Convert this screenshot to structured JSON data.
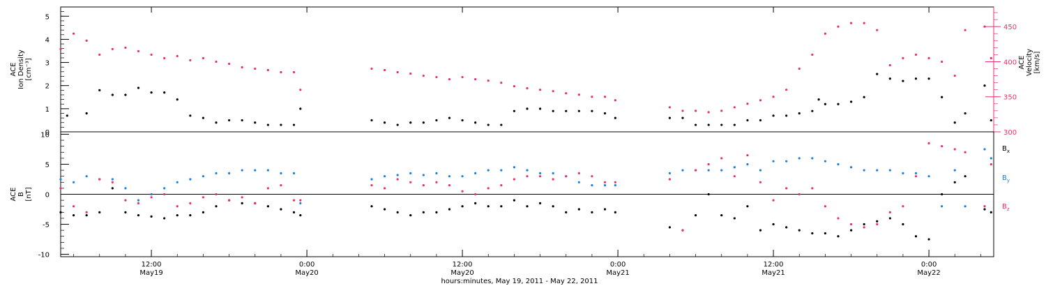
{
  "chart_data": [
    {
      "type": "scatter",
      "panel": "top",
      "ylabel_lines": [
        "ACE",
        "Ion Density",
        "[cm⁻³]"
      ],
      "ylim": [
        0,
        5.4
      ],
      "yticks": [
        0,
        1,
        2,
        3,
        4,
        5
      ],
      "y2label_lines": [
        "ACE",
        "Velocity",
        "[km/s]"
      ],
      "y2lim": [
        300,
        478
      ],
      "y2ticks": [
        300,
        350,
        400,
        450
      ],
      "x_range_hours": [
        5,
        77
      ],
      "series": [
        {
          "name": "",
          "axis": "left",
          "color": "#000000",
          "x": [
            5.5,
            7,
            8,
            9,
            10,
            11,
            12,
            13,
            14,
            15,
            16,
            17,
            18,
            19,
            20,
            21,
            22,
            23,
            23.5,
            29,
            30,
            31,
            32,
            33,
            34,
            35,
            36,
            37,
            38,
            39,
            40,
            41,
            42,
            43,
            44,
            45,
            46,
            47,
            47.8,
            52,
            53,
            54,
            55,
            56,
            57,
            58,
            59,
            60,
            61,
            62,
            63,
            63.5,
            64,
            65,
            66,
            67,
            68,
            69,
            70,
            71,
            72,
            73,
            74,
            74.8,
            76.3,
            76.8
          ],
          "y": [
            0.7,
            0.8,
            1.8,
            1.6,
            1.6,
            1.9,
            1.7,
            1.7,
            1.4,
            0.7,
            0.6,
            0.4,
            0.5,
            0.5,
            0.4,
            0.3,
            0.3,
            0.3,
            1.0,
            0.5,
            0.4,
            0.3,
            0.4,
            0.4,
            0.5,
            0.6,
            0.5,
            0.4,
            0.3,
            0.3,
            0.9,
            1.0,
            1.0,
            0.9,
            0.9,
            0.9,
            0.9,
            0.8,
            0.6,
            0.6,
            0.6,
            0.3,
            0.3,
            0.3,
            0.3,
            0.5,
            0.5,
            0.7,
            0.7,
            0.8,
            0.9,
            1.4,
            1.2,
            1.2,
            1.3,
            1.5,
            2.5,
            2.3,
            2.2,
            2.3,
            2.3,
            1.5,
            0.4,
            0.8,
            2.0,
            0.5
          ]
        },
        {
          "name": "",
          "axis": "right",
          "color": "#e8316b",
          "x": [
            5,
            6,
            7,
            8,
            9,
            10,
            11,
            12,
            13,
            14,
            15,
            16,
            17,
            18,
            19,
            20,
            21,
            22,
            23,
            23.5,
            29,
            30,
            31,
            32,
            33,
            34,
            35,
            36,
            37,
            38,
            39,
            40,
            41,
            42,
            43,
            44,
            45,
            46,
            47,
            47.8,
            52,
            53,
            54,
            55,
            56,
            57,
            58,
            59,
            60,
            61,
            62,
            63,
            64,
            65,
            66,
            67,
            68,
            69,
            70,
            71,
            72,
            73,
            74,
            74.8,
            76.3,
            76.8
          ],
          "y": [
            418,
            440,
            430,
            410,
            418,
            420,
            415,
            410,
            405,
            408,
            402,
            405,
            400,
            397,
            392,
            390,
            388,
            385,
            385,
            360,
            390,
            388,
            385,
            383,
            380,
            378,
            375,
            378,
            375,
            373,
            370,
            365,
            362,
            360,
            358,
            355,
            353,
            350,
            350,
            345,
            335,
            330,
            330,
            328,
            330,
            335,
            340,
            345,
            350,
            360,
            390,
            410,
            440,
            450,
            455,
            455,
            445,
            395,
            405,
            410,
            405,
            400,
            380,
            445,
            450,
            405
          ]
        }
      ]
    },
    {
      "type": "scatter",
      "panel": "bottom",
      "ylabel_lines": [
        "ACE",
        "B",
        "[nT]"
      ],
      "ylim": [
        -10.4,
        10.4
      ],
      "yticks": [
        -10,
        -5,
        0,
        5,
        10
      ],
      "zero_line": true,
      "x_range_hours": [
        5,
        77
      ],
      "series": [
        {
          "name": "Bx",
          "color": "#000000",
          "x": [
            5,
            6,
            7,
            8,
            9,
            10,
            11,
            12,
            13,
            14,
            15,
            16,
            17,
            18,
            19,
            20,
            21,
            22,
            23,
            23.5,
            29,
            30,
            31,
            32,
            33,
            34,
            35,
            36,
            37,
            38,
            39,
            40,
            41,
            42,
            43,
            44,
            45,
            46,
            47,
            47.8,
            52,
            53,
            54,
            55,
            56,
            57,
            58,
            59,
            60,
            61,
            62,
            63,
            64,
            65,
            66,
            67,
            68,
            69,
            70,
            71,
            72,
            73,
            74,
            74.8,
            76.3,
            76.8
          ],
          "y": [
            -3,
            -3.5,
            -3.5,
            -3,
            1,
            -3,
            -3.5,
            -3.7,
            -4,
            -3.5,
            -3.5,
            -3,
            -2,
            -1,
            -1.5,
            -1.5,
            -2,
            -2.5,
            -3,
            -3.5,
            -2,
            -2.5,
            -3,
            -3.5,
            -3,
            -3,
            -2.5,
            -2,
            -1.5,
            -2,
            -2,
            -1,
            -2,
            -1.5,
            -2,
            -3,
            -2.5,
            -3,
            -2.5,
            -3,
            -5.5,
            -6,
            -3.5,
            0,
            -3.5,
            -4,
            -2,
            -6,
            -5,
            -5.5,
            -6,
            -6.5,
            -6.5,
            -7,
            -6,
            -5,
            -4.5,
            -4,
            -5,
            -7,
            -7.5,
            0,
            2,
            3,
            -2.5,
            -3
          ]
        },
        {
          "name": "By",
          "color": "#1a7fe0",
          "x": [
            5,
            6,
            7,
            8,
            9,
            10,
            11,
            12,
            13,
            14,
            15,
            16,
            17,
            18,
            19,
            20,
            21,
            22,
            23,
            23.5,
            29,
            30,
            31,
            32,
            33,
            34,
            35,
            36,
            37,
            38,
            39,
            40,
            41,
            42,
            43,
            44,
            45,
            46,
            47,
            47.8,
            52,
            53,
            54,
            55,
            56,
            57,
            58,
            59,
            60,
            61,
            62,
            63,
            64,
            65,
            66,
            67,
            68,
            69,
            70,
            71,
            72,
            73,
            74,
            74.8,
            76.3,
            76.8
          ],
          "y": [
            2.5,
            2,
            3,
            2.5,
            2.5,
            1,
            -1,
            0,
            1,
            2,
            2.5,
            3,
            3.5,
            3.5,
            4,
            4,
            4,
            3.5,
            3.5,
            -1.5,
            2.5,
            3,
            3.2,
            3.5,
            3.2,
            3.5,
            3,
            3,
            3.5,
            4,
            4,
            4.5,
            4,
            3.5,
            3.5,
            3,
            2,
            1.5,
            1.5,
            1.5,
            3.5,
            4,
            4,
            4,
            4,
            4.5,
            5,
            4,
            5.5,
            5.5,
            6,
            6,
            5.5,
            5,
            4.5,
            4,
            4,
            4,
            3.5,
            3.5,
            3,
            -2,
            4,
            -2,
            7.5,
            6
          ]
        },
        {
          "name": "Bz",
          "color": "#e8316b",
          "x": [
            5,
            6,
            7,
            8,
            9,
            10,
            11,
            12,
            13,
            14,
            15,
            16,
            17,
            18,
            19,
            20,
            21,
            22,
            23,
            23.5,
            29,
            30,
            31,
            32,
            33,
            34,
            35,
            36,
            37,
            38,
            39,
            40,
            41,
            42,
            43,
            44,
            45,
            46,
            47,
            47.8,
            52,
            53,
            54,
            55,
            56,
            57,
            58,
            59,
            60,
            61,
            62,
            63,
            64,
            65,
            66,
            67,
            68,
            69,
            70,
            71,
            72,
            73,
            74,
            74.8,
            76.3,
            76.8
          ],
          "y": [
            1,
            -2,
            -3,
            2.5,
            2,
            -1,
            -1.5,
            -0.5,
            0,
            -2,
            -1.5,
            -0.5,
            0,
            -1,
            -0.5,
            -1.5,
            1,
            1.5,
            -1,
            -1,
            1.5,
            1,
            2.5,
            2,
            1.5,
            2,
            1.5,
            0.5,
            0,
            1,
            1.5,
            2.5,
            3,
            3,
            2.5,
            3,
            3.5,
            3,
            2,
            2,
            2.5,
            -6,
            4,
            5,
            6,
            3,
            6.5,
            2,
            -1,
            1,
            0,
            1,
            -2,
            -4,
            -5,
            -5.5,
            -5,
            -3,
            -2,
            3,
            8.5,
            8,
            7.5,
            7,
            -2,
            5
          ]
        }
      ]
    }
  ],
  "x_axis": {
    "ticks": [
      {
        "h": 12,
        "time": "12:00",
        "date": "May19"
      },
      {
        "h": 24,
        "time": "0:00",
        "date": "May20"
      },
      {
        "h": 36,
        "time": "12:00",
        "date": "May20"
      },
      {
        "h": 48,
        "time": "0:00",
        "date": "May21"
      },
      {
        "h": 60,
        "time": "12:00",
        "date": "May21"
      },
      {
        "h": 72,
        "time": "0:00",
        "date": "May22"
      }
    ],
    "title": "hours:minutes, May 19, 2011 - May 22, 2011"
  },
  "legend": [
    {
      "base": "B",
      "sub": "x",
      "color": "#000000"
    },
    {
      "base": "B",
      "sub": "y",
      "color": "#1a7fe0"
    },
    {
      "base": "B",
      "sub": "z",
      "color": "#e8316b"
    }
  ]
}
